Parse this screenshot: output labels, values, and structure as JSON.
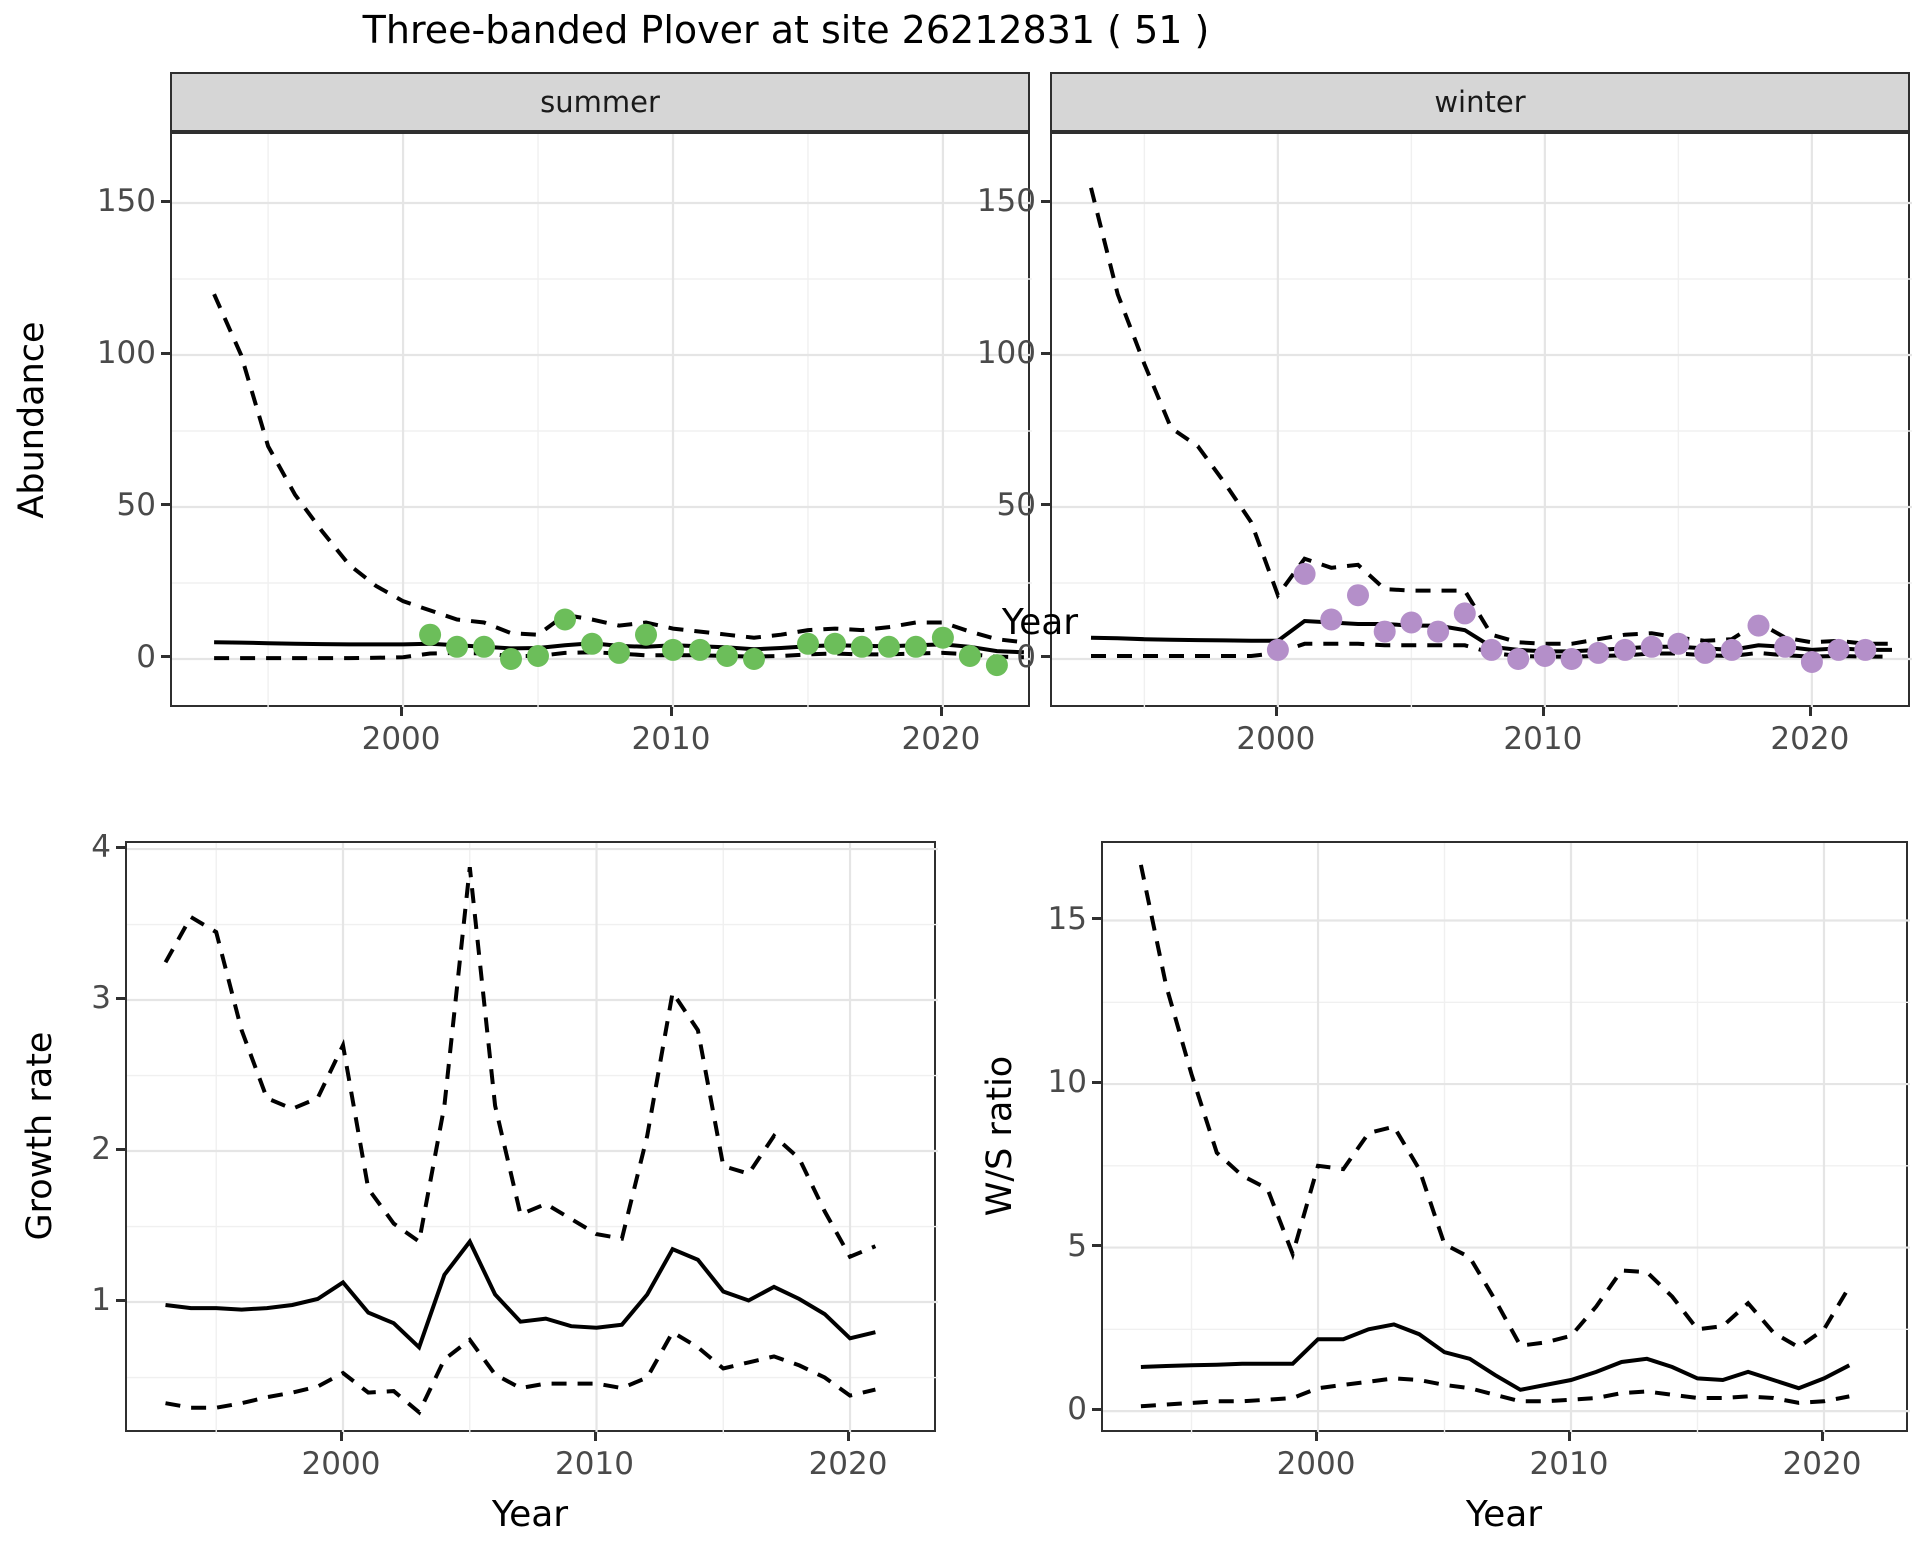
{
  "title": "Three-banded Plover at site 26212831 ( 51 )",
  "axis_titles": {
    "y_top": "Abundance",
    "x_top": "Year",
    "y_bottom_left": "Growth rate",
    "x_bottom_left": "Year",
    "y_bottom_right": "W/S ratio",
    "x_bottom_right": "Year"
  },
  "colors": {
    "summer_points": "#6cbe5a",
    "winter_points": "#b48fc9",
    "line": "#000000",
    "grid_major": "#e5e5e5",
    "grid_minor": "#f0f0f0",
    "strip_bg": "#d6d6d6",
    "panel_border": "#2f2f2f",
    "tick_text": "#4a4a4a"
  },
  "chart_data": [
    {
      "id": "abundance-summer",
      "type": "line",
      "facet_label": "summer",
      "ylabel": "Abundance",
      "xlabel": "Year",
      "xlim": [
        1991.44,
        2023.3
      ],
      "ylim": [
        -16.45,
        172.7
      ],
      "x_ticks": [
        2000,
        2010,
        2020
      ],
      "x_tick_labels": [
        "2000",
        "2010",
        "2020"
      ],
      "x_minor": [
        1995,
        2005,
        2015
      ],
      "y_ticks": [
        0,
        50,
        100,
        150
      ],
      "y_tick_labels": [
        "0",
        "50",
        "100",
        "150"
      ],
      "y_minor": [
        25,
        75,
        125
      ],
      "grid": true,
      "legend": "none",
      "series": [
        {
          "name": "upper-95ci",
          "style": "dashed",
          "x": [
            1993,
            1994,
            1995,
            1996,
            1997,
            1998,
            1999,
            2000,
            2001,
            2002,
            2003,
            2004,
            2005,
            2006,
            2007,
            2008,
            2009,
            2010,
            2011,
            2012,
            2013,
            2014,
            2015,
            2016,
            2017,
            2018,
            2019,
            2020,
            2021,
            2022,
            2023
          ],
          "y": [
            120,
            100,
            70,
            54,
            42,
            31,
            24,
            19,
            16,
            13,
            12,
            8.5,
            8,
            14.5,
            13,
            11,
            12,
            10,
            9,
            8,
            7,
            8,
            9.5,
            10,
            9.5,
            10.5,
            12,
            12,
            9,
            6.5,
            5.5
          ]
        },
        {
          "name": "median",
          "style": "solid",
          "x": [
            1993,
            1994,
            1995,
            1996,
            1997,
            1998,
            1999,
            2000,
            2001,
            2002,
            2003,
            2004,
            2005,
            2006,
            2007,
            2008,
            2009,
            2010,
            2011,
            2012,
            2013,
            2014,
            2015,
            2016,
            2017,
            2018,
            2019,
            2020,
            2021,
            2022,
            2023
          ],
          "y": [
            5.5,
            5.4,
            5.2,
            5.0,
            4.9,
            4.8,
            4.8,
            4.8,
            5.0,
            4.5,
            4.0,
            3.5,
            3.6,
            4.5,
            5.2,
            4.3,
            4.0,
            4.5,
            4.2,
            3.8,
            3.2,
            3.6,
            4.2,
            4.5,
            4.3,
            4.2,
            4.5,
            4.8,
            4.0,
            2.6,
            2.2
          ]
        },
        {
          "name": "lower-95ci",
          "style": "dashed",
          "x": [
            1993,
            1994,
            1995,
            1996,
            1997,
            1998,
            1999,
            2000,
            2001,
            2002,
            2003,
            2004,
            2005,
            2006,
            2007,
            2008,
            2009,
            2010,
            2011,
            2012,
            2013,
            2014,
            2015,
            2016,
            2017,
            2018,
            2019,
            2020,
            2021,
            2022,
            2023
          ],
          "y": [
            0.3,
            0.3,
            0.3,
            0.3,
            0.3,
            0.3,
            0.4,
            0.6,
            1.8,
            2.0,
            1.8,
            1.0,
            1.0,
            2.0,
            2.2,
            1.8,
            1.2,
            1.2,
            1.2,
            1.0,
            0.8,
            1.0,
            1.5,
            1.8,
            1.5,
            1.5,
            1.8,
            2.0,
            1.5,
            0.8,
            0.6
          ]
        }
      ],
      "points": {
        "name": "observed-count",
        "color": "#6cbe5a",
        "x": [
          2001,
          2002,
          2003,
          2004,
          2005,
          2006,
          2007,
          2008,
          2009,
          2010,
          2011,
          2012,
          2013,
          2015,
          2016,
          2017,
          2018,
          2019,
          2020,
          2021,
          2022
        ],
        "y": [
          8,
          4,
          4,
          0,
          1,
          13,
          5,
          2,
          8,
          3,
          3,
          1,
          0,
          5,
          5,
          4,
          4,
          4,
          7,
          1,
          -2
        ]
      }
    },
    {
      "id": "abundance-winter",
      "type": "line",
      "facet_label": "winter",
      "ylabel": "Abundance",
      "xlabel": "Year",
      "xlim": [
        1991.54,
        2023.75
      ],
      "ylim": [
        -16.45,
        172.7
      ],
      "x_ticks": [
        2000,
        2010,
        2020
      ],
      "x_tick_labels": [
        "2000",
        "2010",
        "2020"
      ],
      "x_minor": [
        1995,
        2005,
        2015
      ],
      "y_ticks": [
        0,
        50,
        100,
        150
      ],
      "y_tick_labels": [
        "0",
        "50",
        "100",
        "150"
      ],
      "y_minor": [
        25,
        75,
        125
      ],
      "grid": true,
      "legend": "none",
      "series": [
        {
          "name": "upper-95ci",
          "style": "dashed",
          "x": [
            1993,
            1994,
            1995,
            1996,
            1997,
            1998,
            1999,
            2000,
            2001,
            2002,
            2003,
            2004,
            2005,
            2006,
            2007,
            2008,
            2009,
            2010,
            2011,
            2012,
            2013,
            2014,
            2015,
            2016,
            2017,
            2018,
            2019,
            2020,
            2021,
            2022,
            2023
          ],
          "y": [
            155,
            120,
            97,
            76,
            70,
            58,
            45,
            21,
            33,
            30,
            31,
            23,
            22.5,
            22.5,
            22.5,
            8,
            5.5,
            5,
            5,
            6.5,
            8,
            8.5,
            7,
            6,
            6.5,
            12,
            7,
            5.5,
            6,
            5,
            5
          ]
        },
        {
          "name": "median",
          "style": "solid",
          "x": [
            1993,
            1994,
            1995,
            1996,
            1997,
            1998,
            1999,
            2000,
            2001,
            2002,
            2003,
            2004,
            2005,
            2006,
            2007,
            2008,
            2009,
            2010,
            2011,
            2012,
            2013,
            2014,
            2015,
            2016,
            2017,
            2018,
            2019,
            2020,
            2021,
            2022,
            2023
          ],
          "y": [
            7,
            6.8,
            6.5,
            6.3,
            6.2,
            6.1,
            6.0,
            6.0,
            12.5,
            12,
            11.5,
            11.5,
            11,
            11,
            9.5,
            4,
            3,
            2.5,
            2.5,
            3,
            3.5,
            4,
            4,
            3.5,
            3,
            4.5,
            4,
            3,
            3.5,
            3,
            3
          ]
        },
        {
          "name": "lower-95ci",
          "style": "dashed",
          "x": [
            1993,
            1994,
            1995,
            1996,
            1997,
            1998,
            1999,
            2000,
            2001,
            2002,
            2003,
            2004,
            2005,
            2006,
            2007,
            2008,
            2009,
            2010,
            2011,
            2012,
            2013,
            2014,
            2015,
            2016,
            2017,
            2018,
            2019,
            2020,
            2021,
            2022,
            2023
          ],
          "y": [
            1,
            1,
            1,
            1,
            1,
            1,
            1,
            2,
            5,
            5,
            5,
            4.5,
            4.5,
            4.5,
            4.5,
            2,
            1,
            0.8,
            0.8,
            1,
            1.2,
            1.8,
            1.8,
            1.2,
            1,
            2,
            1.2,
            0.8,
            1,
            0.8,
            0.8
          ]
        }
      ],
      "points": {
        "name": "observed-count",
        "color": "#b48fc9",
        "x": [
          2000,
          2001,
          2002,
          2003,
          2004,
          2005,
          2006,
          2007,
          2008,
          2009,
          2010,
          2011,
          2012,
          2013,
          2014,
          2015,
          2016,
          2017,
          2018,
          2019,
          2020,
          2021,
          2022
        ],
        "y": [
          3,
          28,
          13,
          21,
          9,
          12,
          9,
          15,
          3,
          0,
          1,
          0,
          2,
          3,
          4,
          5,
          2,
          3,
          11,
          4,
          -1,
          3,
          3
        ]
      }
    },
    {
      "id": "growth-rate",
      "type": "line",
      "facet_label": "",
      "ylabel": "Growth rate",
      "xlabel": "Year",
      "xlim": [
        1991.48,
        2023.47
      ],
      "ylim": [
        0.126,
        4.04
      ],
      "x_ticks": [
        2000,
        2010,
        2020
      ],
      "x_tick_labels": [
        "2000",
        "2010",
        "2020"
      ],
      "x_minor": [
        1995,
        2005,
        2015
      ],
      "y_ticks": [
        1,
        2,
        3,
        4
      ],
      "y_tick_labels": [
        "1",
        "2",
        "3",
        "4"
      ],
      "y_minor": [
        0.5,
        1.5,
        2.5,
        3.5
      ],
      "grid": true,
      "legend": "none",
      "series": [
        {
          "name": "upper-95ci",
          "style": "dashed",
          "x": [
            1993,
            1994,
            1995,
            1996,
            1997,
            1998,
            1999,
            2000,
            2001,
            2002,
            2003,
            2004,
            2005,
            2006,
            2007,
            2008,
            2009,
            2010,
            2011,
            2012,
            2013,
            2014,
            2015,
            2016,
            2017,
            2018,
            2019,
            2020,
            2021
          ],
          "y": [
            3.25,
            3.55,
            3.45,
            2.8,
            2.35,
            2.28,
            2.35,
            2.7,
            1.75,
            1.52,
            1.4,
            2.3,
            3.88,
            2.3,
            1.58,
            1.65,
            1.55,
            1.45,
            1.42,
            2.1,
            3.05,
            2.8,
            1.9,
            1.85,
            2.1,
            1.95,
            1.6,
            1.3,
            1.37
          ]
        },
        {
          "name": "median",
          "style": "solid",
          "x": [
            1993,
            1994,
            1995,
            1996,
            1997,
            1998,
            1999,
            2000,
            2001,
            2002,
            2003,
            2004,
            2005,
            2006,
            2007,
            2008,
            2009,
            2010,
            2011,
            2012,
            2013,
            2014,
            2015,
            2016,
            2017,
            2018,
            2019,
            2020,
            2021
          ],
          "y": [
            0.98,
            0.96,
            0.96,
            0.95,
            0.96,
            0.98,
            1.02,
            1.13,
            0.93,
            0.86,
            0.7,
            1.18,
            1.4,
            1.05,
            0.87,
            0.89,
            0.84,
            0.83,
            0.85,
            1.05,
            1.35,
            1.28,
            1.07,
            1.01,
            1.1,
            1.02,
            0.92,
            0.76,
            0.8
          ]
        },
        {
          "name": "lower-95ci",
          "style": "dashed",
          "x": [
            1993,
            1994,
            1995,
            1996,
            1997,
            1998,
            1999,
            2000,
            2001,
            2002,
            2003,
            2004,
            2005,
            2006,
            2007,
            2008,
            2009,
            2010,
            2011,
            2012,
            2013,
            2014,
            2015,
            2016,
            2017,
            2018,
            2019,
            2020,
            2021
          ],
          "y": [
            0.33,
            0.3,
            0.3,
            0.33,
            0.37,
            0.4,
            0.44,
            0.53,
            0.4,
            0.41,
            0.27,
            0.62,
            0.75,
            0.52,
            0.43,
            0.46,
            0.46,
            0.46,
            0.43,
            0.5,
            0.8,
            0.7,
            0.56,
            0.6,
            0.64,
            0.58,
            0.5,
            0.38,
            0.42
          ]
        }
      ],
      "points": null
    },
    {
      "id": "ws-ratio",
      "type": "line",
      "facet_label": "",
      "ylabel": "W/S ratio",
      "xlabel": "Year",
      "xlim": [
        1991.5,
        2023.4
      ],
      "ylim": [
        -0.7,
        17.37
      ],
      "x_ticks": [
        2000,
        2010,
        2020
      ],
      "x_tick_labels": [
        "2000",
        "2010",
        "2020"
      ],
      "x_minor": [
        1995,
        2005,
        2015
      ],
      "y_ticks": [
        0,
        5,
        10,
        15
      ],
      "y_tick_labels": [
        "0",
        "5",
        "10",
        "15"
      ],
      "y_minor": [
        2.5,
        7.5,
        12.5
      ],
      "grid": true,
      "legend": "none",
      "series": [
        {
          "name": "upper-95ci",
          "style": "dashed",
          "x": [
            1993,
            1994,
            1995,
            1996,
            1997,
            1998,
            1999,
            2000,
            2001,
            2002,
            2003,
            2004,
            2005,
            2006,
            2007,
            2008,
            2009,
            2010,
            2011,
            2012,
            2013,
            2014,
            2015,
            2016,
            2017,
            2018,
            2019,
            2020,
            2021
          ],
          "y": [
            16.7,
            13.0,
            10.3,
            7.9,
            7.2,
            6.8,
            4.8,
            7.5,
            7.4,
            8.5,
            8.7,
            7.4,
            5.1,
            4.7,
            3.4,
            2.0,
            2.1,
            2.3,
            3.2,
            4.3,
            4.25,
            3.5,
            2.5,
            2.6,
            3.3,
            2.4,
            1.95,
            2.5,
            3.8
          ]
        },
        {
          "name": "median",
          "style": "solid",
          "x": [
            1993,
            1994,
            1995,
            1996,
            1997,
            1998,
            1999,
            2000,
            2001,
            2002,
            2003,
            2004,
            2005,
            2006,
            2007,
            2008,
            2009,
            2010,
            2011,
            2012,
            2013,
            2014,
            2015,
            2016,
            2017,
            2018,
            2019,
            2020,
            2021
          ],
          "y": [
            1.35,
            1.38,
            1.4,
            1.42,
            1.45,
            1.45,
            1.45,
            2.2,
            2.2,
            2.5,
            2.65,
            2.35,
            1.8,
            1.6,
            1.1,
            0.65,
            0.8,
            0.95,
            1.2,
            1.5,
            1.6,
            1.35,
            1.0,
            0.95,
            1.2,
            0.95,
            0.7,
            1.0,
            1.4
          ]
        },
        {
          "name": "lower-95ci",
          "style": "dashed",
          "x": [
            1993,
            1994,
            1995,
            1996,
            1997,
            1998,
            1999,
            2000,
            2001,
            2002,
            2003,
            2004,
            2005,
            2006,
            2007,
            2008,
            2009,
            2010,
            2011,
            2012,
            2013,
            2014,
            2015,
            2016,
            2017,
            2018,
            2019,
            2020,
            2021
          ],
          "y": [
            0.15,
            0.2,
            0.25,
            0.3,
            0.3,
            0.35,
            0.4,
            0.7,
            0.8,
            0.9,
            1.0,
            0.95,
            0.8,
            0.7,
            0.5,
            0.3,
            0.3,
            0.35,
            0.4,
            0.55,
            0.6,
            0.5,
            0.4,
            0.4,
            0.45,
            0.4,
            0.25,
            0.3,
            0.45
          ]
        }
      ],
      "points": null
    }
  ]
}
